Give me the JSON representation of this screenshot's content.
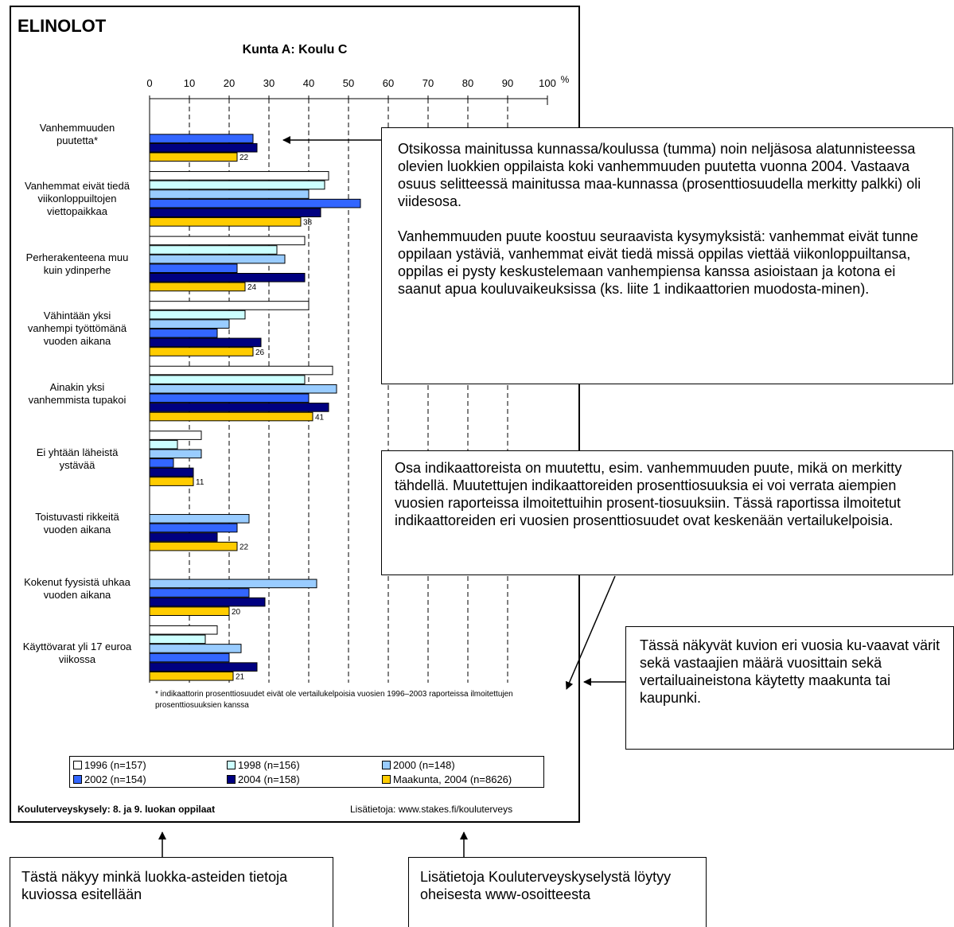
{
  "header": {
    "title": "ELINOLOT",
    "chart_title": "Kunta A: Koulu C"
  },
  "chart_data": {
    "type": "bar",
    "orientation": "horizontal",
    "title": "Kunta A: Koulu C",
    "x_axis": {
      "min": 0,
      "max": 100,
      "ticks": [
        0,
        10,
        20,
        30,
        40,
        50,
        60,
        70,
        80,
        90,
        100
      ],
      "unit": "%",
      "position": "top",
      "grid": "dashed-vertical"
    },
    "categories": [
      "Vanhemmuuden puutetta*",
      "Vanhemmat eivät tiedä viikonloppuiltojen viettopaikkaa",
      "Perherakenteena muu kuin ydinperhe",
      "Vähintään yksi vanhempi työttömänä vuoden aikana",
      "Ainakin yksi vanhemmista tupakoi",
      "Ei yhtään läheistä ystävää",
      "Toistuvasti rikkeitä vuoden aikana",
      "Kokenut fyysistä uhkaa vuoden aikana",
      "Käyttövarat yli 17 euroa viikossa"
    ],
    "category_lines": [
      [
        "Vanhemmuuden",
        "puutetta*"
      ],
      [
        "Vanhemmat eivät tiedä",
        "viikonloppuiltojen",
        "viettopaikkaa"
      ],
      [
        "Perherakenteena muu",
        "kuin ydinperhe"
      ],
      [
        "Vähintään yksi",
        "vanhempi työttömänä",
        "vuoden aikana"
      ],
      [
        "Ainakin yksi",
        "vanhemmista tupakoi"
      ],
      [
        "Ei yhtään läheistä",
        "ystävää"
      ],
      [
        "Toistuvasti rikkeitä",
        "vuoden aikana"
      ],
      [
        "Kokenut fyysistä uhkaa",
        "vuoden aikana"
      ],
      [
        "Käyttövarat yli 17 euroa",
        "viikossa"
      ]
    ],
    "series": [
      {
        "name": "1996 (n=157)",
        "color": "#ffffff",
        "values": [
          null,
          45,
          39,
          40,
          46,
          13,
          null,
          null,
          17
        ]
      },
      {
        "name": "1998 (n=156)",
        "color": "#ccffff",
        "values": [
          null,
          44,
          32,
          24,
          39,
          7,
          null,
          null,
          14
        ]
      },
      {
        "name": "2000 (n=148)",
        "color": "#99ccff",
        "values": [
          null,
          40,
          34,
          20,
          47,
          13,
          25,
          42,
          23
        ]
      },
      {
        "name": "2002 (n=154)",
        "color": "#3366ff",
        "values": [
          26,
          53,
          22,
          17,
          40,
          6,
          22,
          25,
          20
        ]
      },
      {
        "name": "2004 (n=158)",
        "color": "#000080",
        "values": [
          27,
          43,
          39,
          28,
          45,
          11,
          17,
          29,
          27
        ]
      },
      {
        "name": "Maakunta, 2004 (n=8626)",
        "color": "#ffcc00",
        "values": [
          22,
          38,
          24,
          26,
          41,
          11,
          22,
          20,
          21
        ]
      }
    ],
    "data_labels": [
      "22",
      "38",
      "24",
      "26",
      "41",
      "11",
      "22",
      "20",
      "21"
    ],
    "footnote": "* indikaattorin prosenttiosuudet eivät ole vertailukelpoisia vuosien 1996–2003 raporteissa ilmoitettujen prosenttiosuuksien kanssa",
    "legend_placement": "bottom"
  },
  "footer": {
    "left": "Kouluterveyskysely: 8. ja 9. luokan oppilaat",
    "right": "Lisätietoja: www.stakes.fi/kouluterveys"
  },
  "callouts": {
    "c1_p1": "Otsikossa mainitussa kunnassa/koulussa (tumma) noin neljäsosa alatunnisteessa olevien luokkien oppilaista koki vanhemmuuden puutetta vuonna 2004. Vastaava osuus selitteessä mainitussa maa-kunnassa (prosenttiosuudella merkitty palkki) oli viidesosa.",
    "c1_p2": "Vanhemmuuden puute koostuu seuraavista kysymyksistä: vanhemmat eivät tunne oppilaan ystäviä, vanhemmat eivät tiedä missä oppilas viettää viikonloppuiltansa, oppilas ei pysty keskustelemaan vanhempiensa kanssa asioistaan ja kotona ei saanut apua kouluvaikeuksissa (ks. liite 1 indikaattorien muodosta-minen).",
    "c2": "Osa indikaattoreista on muutettu, esim. vanhemmuuden puute, mikä on merkitty tähdellä. Muutettujen indikaattoreiden prosenttiosuuksia ei voi verrata aiempien vuosien raporteissa ilmoitettuihin prosent-tiosuuksiin. Tässä raportissa ilmoitetut indikaattoreiden eri vuosien prosenttiosuudet ovat keskenään vertailukelpoisia.",
    "c3": "Tässä näkyvät kuvion eri vuosia ku-vaavat värit sekä vastaajien määrä vuosittain sekä vertailuaineistona käytetty maakunta tai kaupunki.",
    "c4": "Tästä näkyy minkä luokka-asteiden tietoja kuviossa esitellään",
    "c5": "Lisätietoja Kouluterveyskyselystä löytyy oheisesta www-osoitteesta"
  }
}
